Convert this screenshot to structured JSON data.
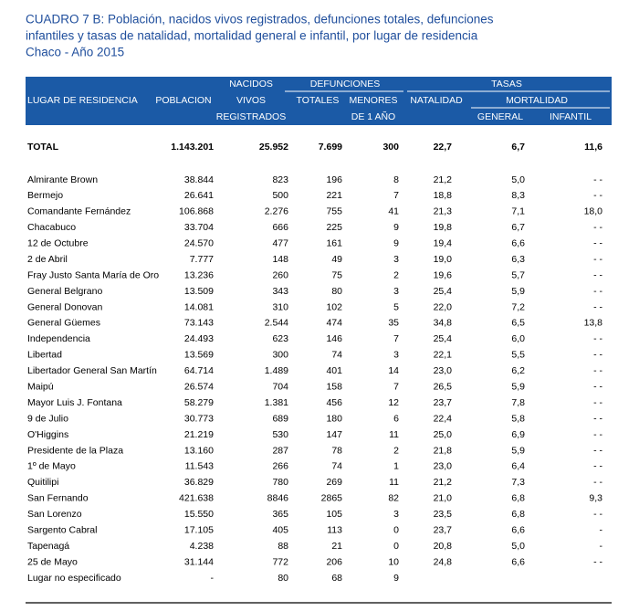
{
  "header": {
    "lines": [
      "CUADRO 7 B: Población, nacidos vivos registrados, defunciones totales, defunciones",
      "infantiles y tasas de natalidad, mortalidad general e infantil, por lugar de residencia",
      "Chaco - Año 2015"
    ]
  },
  "table": {
    "head": {
      "nacidos": [
        "NACIDOS",
        "VIVOS",
        "REGISTRADOS"
      ],
      "defunciones": "DEFUNCIONES",
      "tasas": "TASAS",
      "lugar": "LUGAR DE RESIDENCIA",
      "poblacion": "POBLACION",
      "totales": "TOTALES",
      "menores": [
        "MENORES",
        "DE 1 AÑO"
      ],
      "natalidad": "NATALIDAD",
      "mortalidad": "MORTALIDAD",
      "general": "GENERAL",
      "infantil": "INFANTIL"
    },
    "total": [
      "TOTAL",
      "1.143.201",
      "25.952",
      "7.699",
      "300",
      "22,7",
      "6,7",
      "11,6"
    ],
    "rows": [
      [
        "Almirante Brown",
        "38.844",
        "823",
        "196",
        "8",
        "21,2",
        "5,0",
        "- -"
      ],
      [
        "Bermejo",
        "26.641",
        "500",
        "221",
        "7",
        "18,8",
        "8,3",
        "- -"
      ],
      [
        "Comandante Fernández",
        "106.868",
        "2.276",
        "755",
        "41",
        "21,3",
        "7,1",
        "18,0"
      ],
      [
        "Chacabuco",
        "33.704",
        "666",
        "225",
        "9",
        "19,8",
        "6,7",
        "- -"
      ],
      [
        "12 de Octubre",
        "24.570",
        "477",
        "161",
        "9",
        "19,4",
        "6,6",
        "- -"
      ],
      [
        "2 de Abril",
        "7.777",
        "148",
        "49",
        "3",
        "19,0",
        "6,3",
        "- -"
      ],
      [
        "Fray Justo Santa María de Oro",
        "13.236",
        "260",
        "75",
        "2",
        "19,6",
        "5,7",
        "- -"
      ],
      [
        "General Belgrano",
        "13.509",
        "343",
        "80",
        "3",
        "25,4",
        "5,9",
        "- -"
      ],
      [
        "General Donovan",
        "14.081",
        "310",
        "102",
        "5",
        "22,0",
        "7,2",
        "- -"
      ],
      [
        "General Güemes",
        "73.143",
        "2.544",
        "474",
        "35",
        "34,8",
        "6,5",
        "13,8"
      ],
      [
        "Independencia",
        "24.493",
        "623",
        "146",
        "7",
        "25,4",
        "6,0",
        "- -"
      ],
      [
        "Libertad",
        "13.569",
        "300",
        "74",
        "3",
        "22,1",
        "5,5",
        "- -"
      ],
      [
        "Libertador General San Martín",
        "64.714",
        "1.489",
        "401",
        "14",
        "23,0",
        "6,2",
        "- -"
      ],
      [
        "Maipú",
        "26.574",
        "704",
        "158",
        "7",
        "26,5",
        "5,9",
        "- -"
      ],
      [
        "Mayor Luis J. Fontana",
        "58.279",
        "1.381",
        "456",
        "12",
        "23,7",
        "7,8",
        "- -"
      ],
      [
        "9 de Julio",
        "30.773",
        "689",
        "180",
        "6",
        "22,4",
        "5,8",
        "- -"
      ],
      [
        "O'Higgins",
        "21.219",
        "530",
        "147",
        "11",
        "25,0",
        "6,9",
        "- -"
      ],
      [
        "Presidente de la Plaza",
        "13.160",
        "287",
        "78",
        "2",
        "21,8",
        "5,9",
        "- -"
      ],
      [
        "1º de Mayo",
        "11.543",
        "266",
        "74",
        "1",
        "23,0",
        "6,4",
        "- -"
      ],
      [
        "Quitilipi",
        "36.829",
        "780",
        "269",
        "11",
        "21,2",
        "7,3",
        "- -"
      ],
      [
        "San Fernando",
        "421.638",
        "8846",
        "2865",
        "82",
        "21,0",
        "6,8",
        "9,3"
      ],
      [
        "San Lorenzo",
        "15.550",
        "365",
        "105",
        "3",
        "23,5",
        "6,8",
        "- -"
      ],
      [
        "Sargento Cabral",
        "17.105",
        "405",
        "113",
        "0",
        "23,7",
        "6,6",
        "-"
      ],
      [
        "Tapenagá",
        "4.238",
        "88",
        "21",
        "0",
        "20,8",
        "5,0",
        "-"
      ],
      [
        "25 de Mayo",
        "31.144",
        "772",
        "206",
        "10",
        "24,8",
        "6,6",
        "- -"
      ],
      [
        "Lugar no especificado",
        "-",
        "80",
        "68",
        "9",
        "",
        "",
        ""
      ]
    ]
  }
}
